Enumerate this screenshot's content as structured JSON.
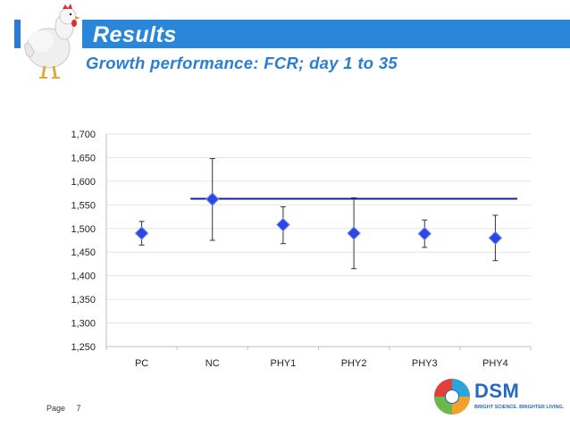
{
  "header": {
    "title": "Results",
    "subtitle": "Growth performance: FCR; day 1 to 35"
  },
  "colors": {
    "header_bar": "#2a86d9",
    "subtitle": "#2a7fd2",
    "marker": "#2f46e0",
    "reference_line": "#1a1ab0"
  },
  "chart_data": {
    "type": "scatter",
    "title": "",
    "xlabel": "",
    "ylabel": "",
    "categories": [
      "PC",
      "NC",
      "PHY1",
      "PHY2",
      "PHY3",
      "PHY4"
    ],
    "values": [
      1.49,
      1.562,
      1.508,
      1.49,
      1.489,
      1.48
    ],
    "error_low": [
      1.465,
      1.475,
      1.468,
      1.415,
      1.46,
      1.432
    ],
    "error_high": [
      1.515,
      1.648,
      1.546,
      1.565,
      1.518,
      1.528
    ],
    "reference_line": {
      "value": 1.563,
      "from": "NC",
      "to": "PHY4"
    },
    "ylim": [
      1.25,
      1.7
    ],
    "y_ticks": [
      1.25,
      1.3,
      1.35,
      1.4,
      1.45,
      1.5,
      1.55,
      1.6,
      1.65,
      1.7
    ],
    "y_tick_labels": [
      "1,250",
      "1,300",
      "1,350",
      "1,400",
      "1,450",
      "1,500",
      "1,550",
      "1,600",
      "1,650",
      "1,700"
    ],
    "grid": true,
    "legend": "none"
  },
  "footer": {
    "page_label": "Page",
    "page_number": "7"
  },
  "logo": {
    "name": "DSM",
    "tagline": "BRIGHT SCIENCE. BRIGHTER LIVING."
  }
}
